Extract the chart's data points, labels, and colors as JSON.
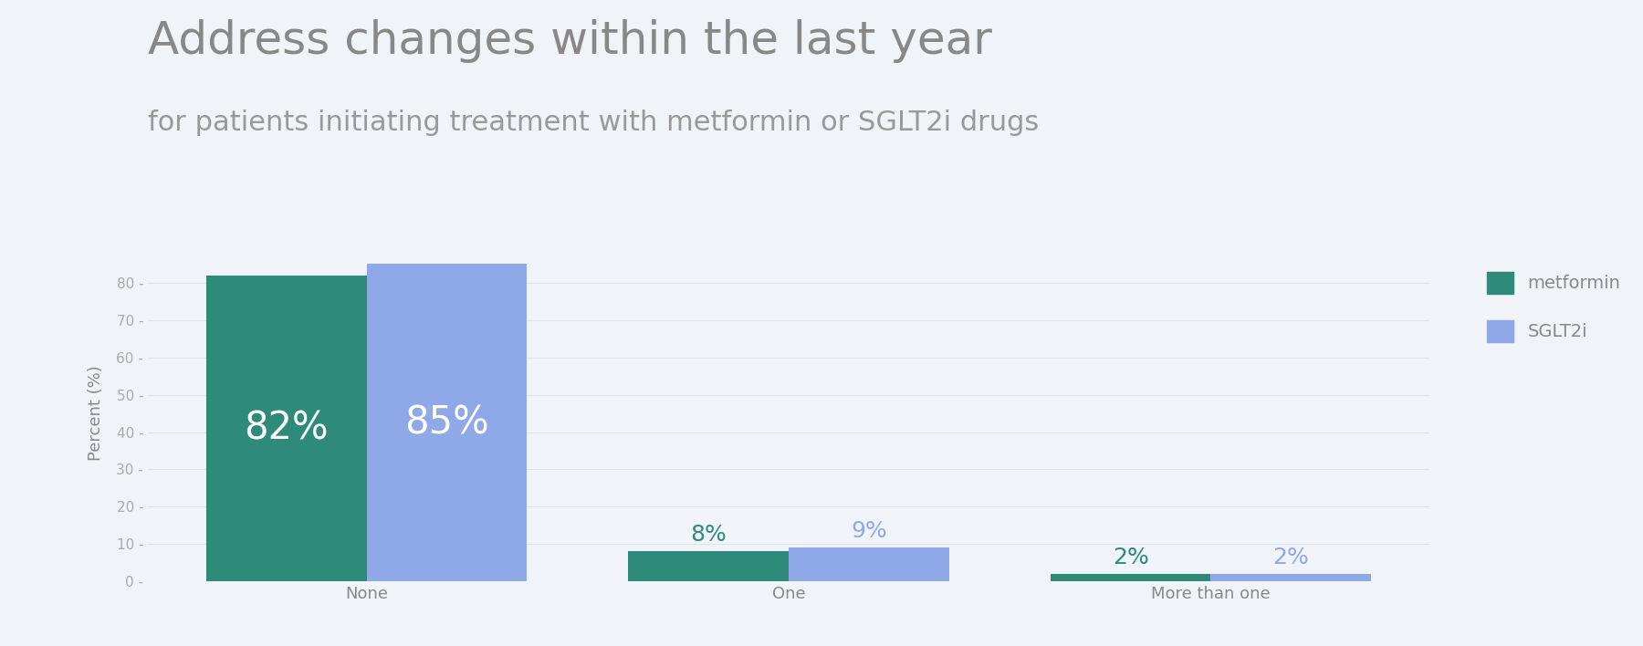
{
  "title": "Address changes within the last year",
  "subtitle": "for patients initiating treatment with metformin or SGLT2i drugs",
  "categories": [
    "None",
    "One",
    "More than one"
  ],
  "metformin_values": [
    82,
    8,
    2
  ],
  "sglt2i_values": [
    85,
    9,
    2
  ],
  "metformin_color": "#2e8b7a",
  "sglt2i_color": "#8fa8e8",
  "metformin_label_color_large": "#ffffff",
  "metformin_label_color_small": "#2e8b7a",
  "sglt2i_label_color_small": "#8fa8e8",
  "background_color": "#f0f3f8",
  "ylabel": "Percent (%)",
  "ylim": [
    0,
    90
  ],
  "yticks": [
    0,
    10,
    20,
    30,
    40,
    50,
    60,
    70,
    80
  ],
  "title_fontsize": 36,
  "subtitle_fontsize": 22,
  "bar_width": 0.38,
  "legend_labels": [
    "metformin",
    "SGLT2i"
  ],
  "title_color": "#888888",
  "subtitle_color": "#999999",
  "ylabel_color": "#888888",
  "tick_color": "#aaaaaa",
  "xticklabel_color": "#888888",
  "grid_color": "#e0e4ea"
}
